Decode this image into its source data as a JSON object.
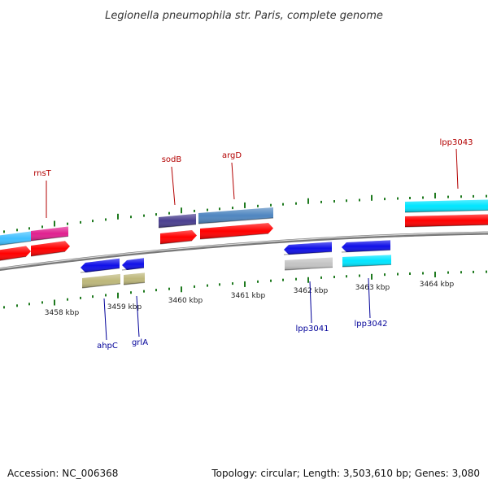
{
  "title": "Legionella pneumophila str. Paris, complete genome",
  "footer": {
    "accession": "Accession: NC_006368",
    "summary": "Topology: circular; Length: 3,503,610 bp; Genes: 3,080"
  },
  "scale": {
    "labels": [
      "3458 kbp",
      "3459 kbp",
      "3460 kbp",
      "3461 kbp",
      "3462 kbp",
      "3463 kbp",
      "3464 kbp"
    ]
  },
  "genes": {
    "forward": [
      {
        "label": "rnsT"
      },
      {
        "label": "sodB"
      },
      {
        "label": "argD"
      },
      {
        "label": "lpp3043"
      }
    ],
    "reverse": [
      {
        "label": "ahpC"
      },
      {
        "label": "grlA"
      },
      {
        "label": "lpp3041"
      },
      {
        "label": "lpp3042"
      }
    ]
  },
  "colors": {
    "backbone": "#888888",
    "ticks": "#1f7a1f",
    "forward_label": "#b30000",
    "reverse_label": "#000099",
    "red": "#ff0000",
    "cyan": "#00e5ff",
    "sky": "#3fbfff",
    "magenta": "#e0208f",
    "navy": "#4a3f8f",
    "steel": "#4f86c0",
    "blue": "#1010e8",
    "khaki": "#bdb77a",
    "grey": "#c4c4c4"
  }
}
